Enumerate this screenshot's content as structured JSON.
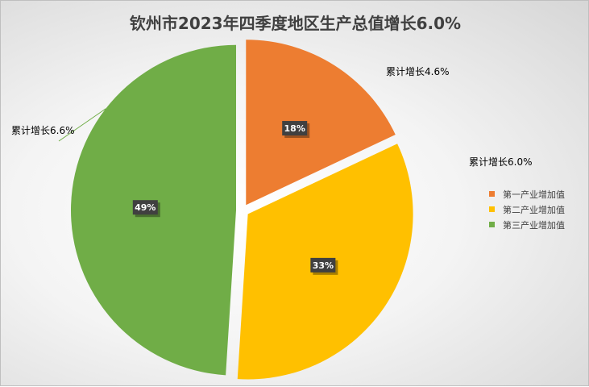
{
  "chart_data": {
    "type": "pie",
    "title": "钦州市2023年四季度地区生产总值增长6.0%",
    "categories": [
      "第一产业增加值",
      "第二产业增加值",
      "第三产业增加值"
    ],
    "values": [
      18,
      33,
      49
    ],
    "value_labels": [
      "18%",
      "33%",
      "49%"
    ],
    "callouts": [
      "累计增长4.6%",
      "累计增长6.0%",
      "累计增长6.6%"
    ],
    "colors": [
      "#ED7D31",
      "#FFC000",
      "#70AD47"
    ],
    "legend_position": "right",
    "exploded": true
  }
}
